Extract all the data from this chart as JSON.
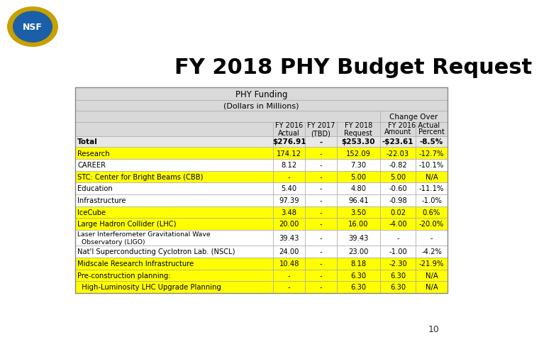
{
  "title": "FY 2018 PHY Budget Request",
  "table_header1": "PHY Funding",
  "table_header2": "(Dollars in Millions)",
  "change_over": "Change Over",
  "fy2016_actual_label": "FY 2016 Actual",
  "rows": [
    {
      "label": "Total",
      "fy2016": "$276.91",
      "fy2017": "-",
      "fy2018": "$253.30",
      "amount": "-$23.61",
      "percent": "-8.5%",
      "highlight": false,
      "bold": true
    },
    {
      "label": "Research",
      "fy2016": "174.12",
      "fy2017": "-",
      "fy2018": "152.09",
      "amount": "-22.03",
      "percent": "-12.7%",
      "highlight": true,
      "bold": false
    },
    {
      "label": "CAREER",
      "fy2016": "8.12",
      "fy2017": "-",
      "fy2018": "7.30",
      "amount": "-0.82",
      "percent": "-10.1%",
      "highlight": false,
      "bold": false
    },
    {
      "label": "STC: Center for Bright Beams (CBB)",
      "fy2016": "-",
      "fy2017": "-",
      "fy2018": "5.00",
      "amount": "5.00",
      "percent": "N/A",
      "highlight": true,
      "bold": false
    },
    {
      "label": "Education",
      "fy2016": "5.40",
      "fy2017": "-",
      "fy2018": "4.80",
      "amount": "-0.60",
      "percent": "-11.1%",
      "highlight": false,
      "bold": false
    },
    {
      "label": "Infrastructure",
      "fy2016": "97.39",
      "fy2017": "-",
      "fy2018": "96.41",
      "amount": "-0.98",
      "percent": "-1.0%",
      "highlight": false,
      "bold": false
    },
    {
      "label": "IceCube",
      "fy2016": "3.48",
      "fy2017": "-",
      "fy2018": "3.50",
      "amount": "0.02",
      "percent": "0.6%",
      "highlight": true,
      "bold": false
    },
    {
      "label": "Large Hadron Collider (LHC)",
      "fy2016": "20.00",
      "fy2017": "-",
      "fy2018": "16.00",
      "amount": "-4.00",
      "percent": "-20.0%",
      "highlight": true,
      "bold": false
    },
    {
      "label": "Laser Interferometer Gravitational Wave\n  Observatory (LIGO)",
      "fy2016": "39.43",
      "fy2017": "-",
      "fy2018": "39.43",
      "amount": "-",
      "percent": "-",
      "highlight": false,
      "bold": false
    },
    {
      "label": "Nat'l Superconducting Cyclotron Lab. (NSCL)",
      "fy2016": "24.00",
      "fy2017": "-",
      "fy2018": "23.00",
      "amount": "-1.00",
      "percent": "-4.2%",
      "highlight": false,
      "bold": false
    },
    {
      "label": "Midscale Research Infrastructure",
      "fy2016": "10.48",
      "fy2017": "-",
      "fy2018": "8.18",
      "amount": "-2.30",
      "percent": "-21.9%",
      "highlight": true,
      "bold": false
    },
    {
      "label": "Pre-construction planning:",
      "fy2016": "-",
      "fy2017": "-",
      "fy2018": "6.30",
      "amount": "6.30",
      "percent": "N/A",
      "highlight": true,
      "bold": false
    },
    {
      "label": "  High-Luminosity LHC Upgrade Planning",
      "fy2016": "-",
      "fy2017": "-",
      "fy2018": "6.30",
      "amount": "6.30",
      "percent": "N/A",
      "highlight": true,
      "bold": false
    }
  ],
  "highlight_color": "#FFFF00",
  "header_bg_color": "#D9D9D9",
  "white": "#FFFFFF",
  "light_gray": "#E8E8E8",
  "border_color": "#AAAAAA",
  "title_color": "#000000",
  "background_color": "#FFFFFF"
}
